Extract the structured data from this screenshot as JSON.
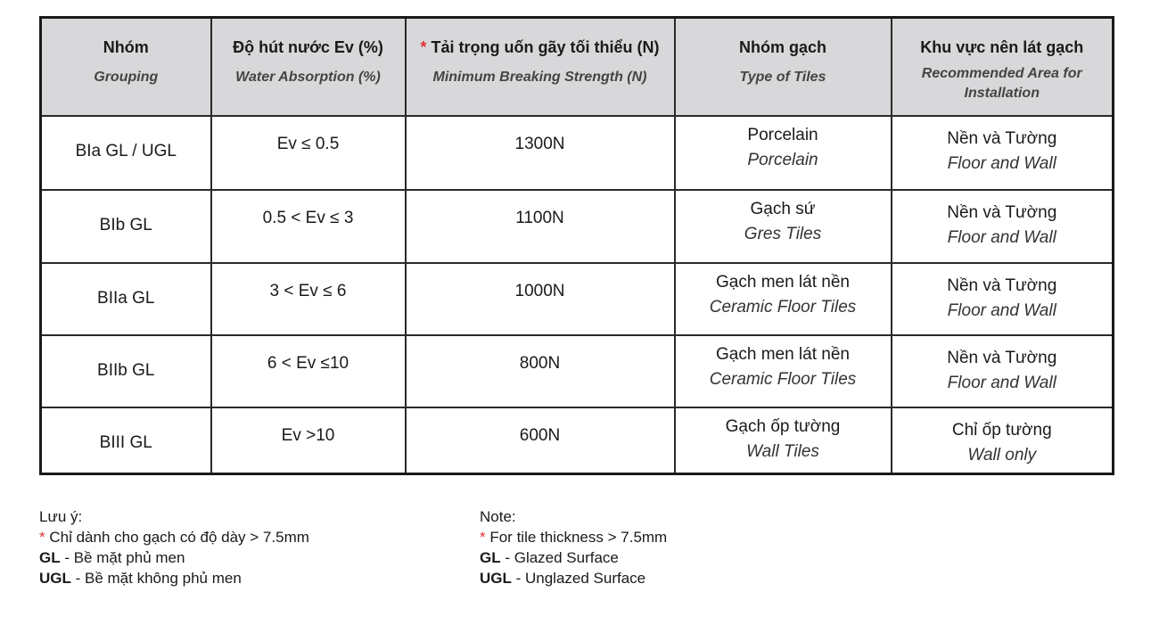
{
  "table": {
    "headers": [
      {
        "vi": "Nhóm",
        "en": "Grouping"
      },
      {
        "vi": "Độ hút nước Ev (%)",
        "en": "Water Absorption (%)"
      },
      {
        "star": "*",
        "vi": "Tải trọng uốn gãy tối thiểu (N)",
        "en": "Minimum Breaking Strength (N)"
      },
      {
        "vi": "Nhóm gạch",
        "en": "Type of Tiles"
      },
      {
        "vi": "Khu vực nên lát gạch",
        "en": "Recommended Area for Installation"
      }
    ],
    "rows": [
      {
        "group": "BIa GL / UGL",
        "absorption": "Ev ≤ 0.5",
        "strength": "1300N",
        "type_vi": "Porcelain",
        "type_en": "Porcelain",
        "area_vi": "Nền và Tường",
        "area_en": "Floor and Wall"
      },
      {
        "group": "BIb GL",
        "absorption": "0.5 < Ev ≤ 3",
        "strength": "1100N",
        "type_vi": "Gạch sứ",
        "type_en": "Gres Tiles",
        "area_vi": "Nền và Tường",
        "area_en": "Floor and Wall"
      },
      {
        "group": "BIIa GL",
        "absorption": "3 < Ev ≤ 6",
        "strength": "1000N",
        "type_vi": "Gạch men lát nền",
        "type_en": "Ceramic Floor Tiles",
        "area_vi": "Nền và Tường",
        "area_en": "Floor and Wall"
      },
      {
        "group": "BIIb GL",
        "absorption": "6 < Ev ≤10",
        "strength": "800N",
        "type_vi": "Gạch men lát nền",
        "type_en": "Ceramic Floor Tiles",
        "area_vi": "Nền và Tường",
        "area_en": "Floor and Wall"
      },
      {
        "group": "BIII GL",
        "absorption": "Ev >10",
        "strength": "600N",
        "type_vi": "Gạch ốp tường",
        "type_en": "Wall Tiles",
        "area_vi": "Chỉ ốp tường",
        "area_en": "Wall only"
      }
    ]
  },
  "notes_vi": {
    "title": "Lưu ý:",
    "star": "*",
    "star_text": " Chỉ dành cho gạch có độ dày > 7.5mm",
    "gl": "GL",
    "gl_text": " - Bề mặt phủ men",
    "ugl": "UGL",
    "ugl_text": " - Bề mặt không phủ men"
  },
  "notes_en": {
    "title": "Note:",
    "star": "*",
    "star_text": " For tile thickness > 7.5mm",
    "gl": "GL",
    "gl_text": " - Glazed Surface",
    "ugl": "UGL",
    "ugl_text": " - Unglazed Surface"
  },
  "colors": {
    "header_bg": "#d8d8da",
    "asterisk": "#dd3333"
  }
}
